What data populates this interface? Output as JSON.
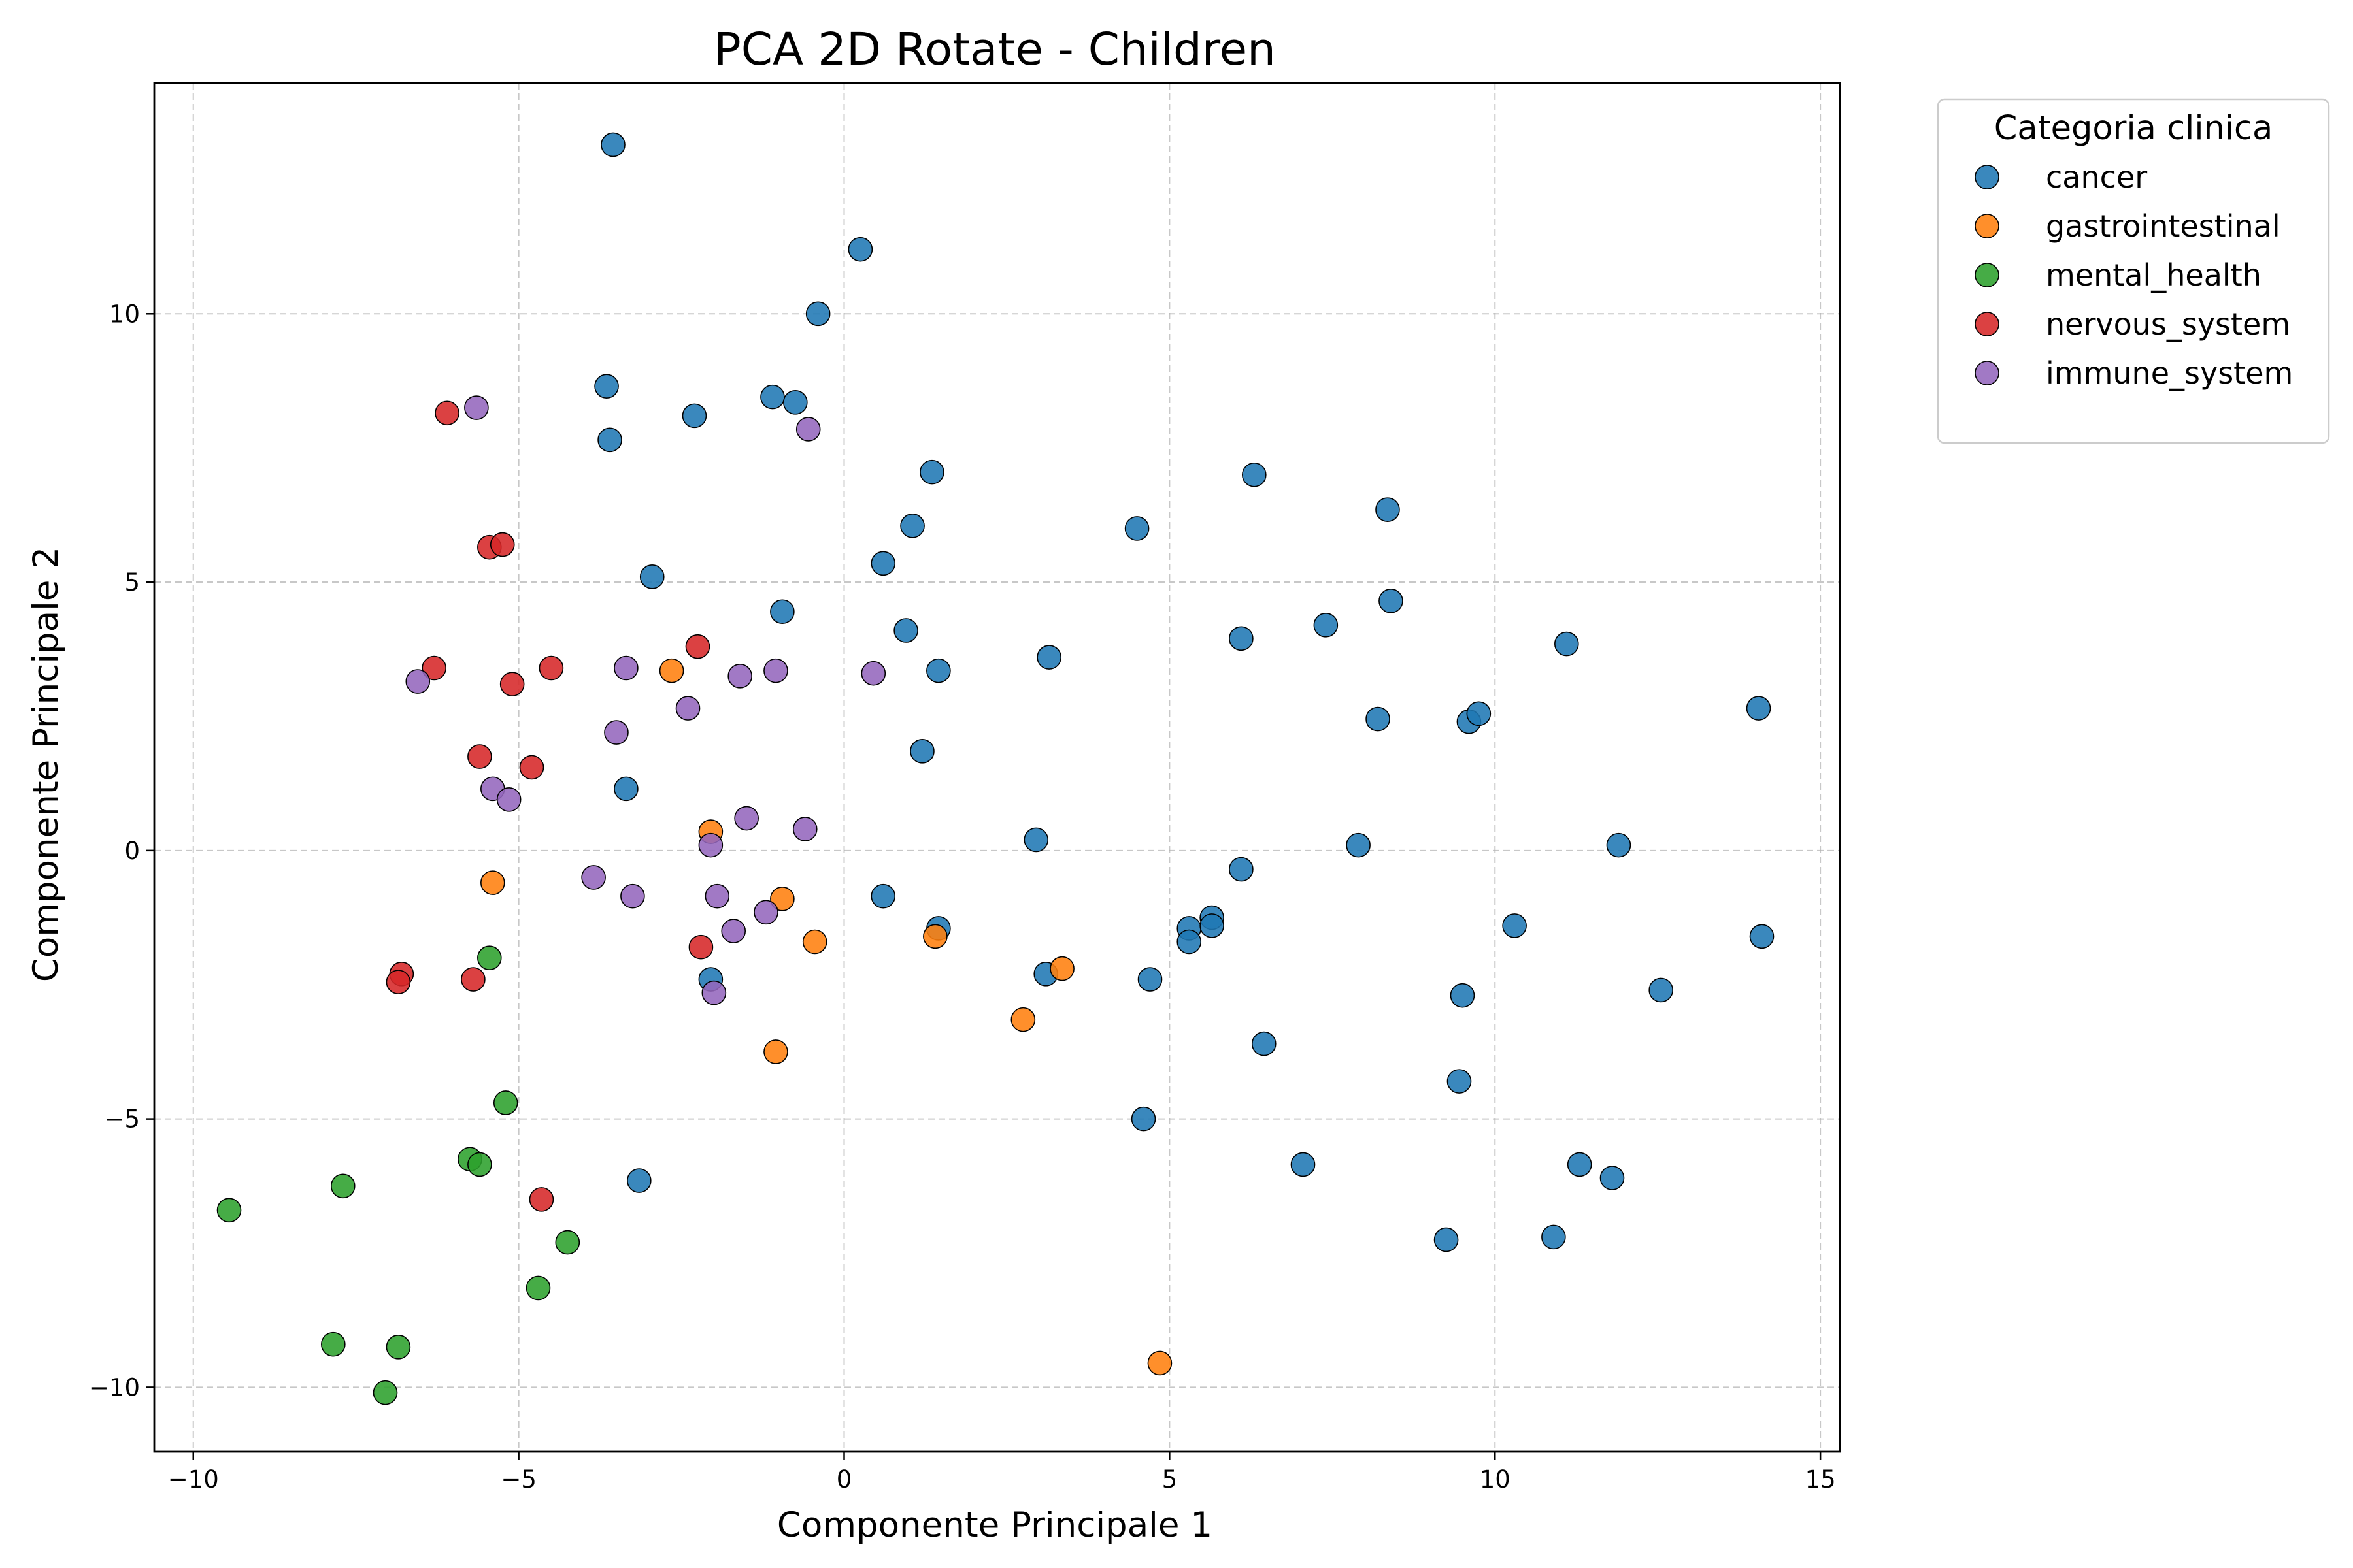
{
  "chart_data": {
    "type": "scatter",
    "title": "PCA 2D Rotate - Children",
    "xlabel": "Componente Principale 1",
    "ylabel": "Componente Principale 2",
    "xlim": [
      -10.6,
      15.3
    ],
    "ylim": [
      -11.2,
      14.3
    ],
    "x_ticks": [
      -10,
      -5,
      0,
      5,
      10,
      15
    ],
    "y_ticks": [
      -10,
      -5,
      0,
      5,
      10
    ],
    "x_tick_labels": [
      "−10",
      "−5",
      "0",
      "5",
      "10",
      "15"
    ],
    "y_tick_labels": [
      "−10",
      "−5",
      "0",
      "5",
      "10"
    ],
    "grid": true,
    "legend": {
      "title": "Categoria clinica",
      "placement": "outside-right-top"
    },
    "series": [
      {
        "name": "cancer",
        "color": "#1f77b4",
        "points": [
          [
            -3.55,
            13.15
          ],
          [
            0.25,
            11.2
          ],
          [
            -0.4,
            10.0
          ],
          [
            -3.65,
            8.65
          ],
          [
            -3.6,
            7.65
          ],
          [
            -2.3,
            8.1
          ],
          [
            -1.1,
            8.45
          ],
          [
            -0.75,
            8.35
          ],
          [
            1.35,
            7.05
          ],
          [
            1.05,
            6.05
          ],
          [
            0.6,
            5.35
          ],
          [
            -2.95,
            5.1
          ],
          [
            -0.95,
            4.45
          ],
          [
            0.95,
            4.1
          ],
          [
            1.45,
            3.35
          ],
          [
            3.15,
            3.6
          ],
          [
            4.5,
            6.0
          ],
          [
            6.3,
            7.0
          ],
          [
            8.35,
            6.35
          ],
          [
            6.1,
            3.95
          ],
          [
            7.4,
            4.2
          ],
          [
            8.4,
            4.65
          ],
          [
            11.1,
            3.85
          ],
          [
            8.2,
            2.45
          ],
          [
            9.6,
            2.4
          ],
          [
            9.75,
            2.55
          ],
          [
            14.05,
            2.65
          ],
          [
            1.2,
            1.85
          ],
          [
            -3.35,
            1.15
          ],
          [
            2.95,
            0.2
          ],
          [
            7.9,
            0.1
          ],
          [
            11.9,
            0.1
          ],
          [
            6.1,
            -0.35
          ],
          [
            0.6,
            -0.85
          ],
          [
            1.45,
            -1.45
          ],
          [
            5.3,
            -1.45
          ],
          [
            5.65,
            -1.25
          ],
          [
            5.65,
            -1.4
          ],
          [
            5.3,
            -1.7
          ],
          [
            10.3,
            -1.4
          ],
          [
            14.1,
            -1.6
          ],
          [
            3.1,
            -2.3
          ],
          [
            4.7,
            -2.4
          ],
          [
            -2.05,
            -2.4
          ],
          [
            9.5,
            -2.7
          ],
          [
            12.55,
            -2.6
          ],
          [
            6.45,
            -3.6
          ],
          [
            9.45,
            -4.3
          ],
          [
            4.6,
            -5.0
          ],
          [
            7.05,
            -5.85
          ],
          [
            11.3,
            -5.85
          ],
          [
            11.8,
            -6.1
          ],
          [
            -3.15,
            -6.15
          ],
          [
            9.25,
            -7.25
          ],
          [
            10.9,
            -7.2
          ]
        ]
      },
      {
        "name": "gastrointestinal",
        "color": "#ff7f0e",
        "points": [
          [
            -2.65,
            3.35
          ],
          [
            -2.05,
            0.35
          ],
          [
            -5.4,
            -0.6
          ],
          [
            -0.95,
            -0.9
          ],
          [
            -0.45,
            -1.7
          ],
          [
            1.4,
            -1.6
          ],
          [
            3.35,
            -2.2
          ],
          [
            2.75,
            -3.15
          ],
          [
            -1.05,
            -3.75
          ],
          [
            4.85,
            -9.55
          ]
        ]
      },
      {
        "name": "mental_health",
        "color": "#2ca02c",
        "points": [
          [
            -5.45,
            -2.0
          ],
          [
            -5.2,
            -4.7
          ],
          [
            -5.75,
            -5.75
          ],
          [
            -5.6,
            -5.85
          ],
          [
            -7.7,
            -6.25
          ],
          [
            -9.45,
            -6.7
          ],
          [
            -4.25,
            -7.3
          ],
          [
            -4.7,
            -8.15
          ],
          [
            -7.85,
            -9.2
          ],
          [
            -6.85,
            -9.25
          ],
          [
            -7.05,
            -10.1
          ]
        ]
      },
      {
        "name": "nervous_system",
        "color": "#d62728",
        "points": [
          [
            -6.1,
            8.15
          ],
          [
            -5.45,
            5.65
          ],
          [
            -5.25,
            5.7
          ],
          [
            -2.25,
            3.8
          ],
          [
            -6.3,
            3.4
          ],
          [
            -4.5,
            3.4
          ],
          [
            -5.1,
            3.1
          ],
          [
            -5.6,
            1.75
          ],
          [
            -4.8,
            1.55
          ],
          [
            -2.2,
            -1.8
          ],
          [
            -6.8,
            -2.3
          ],
          [
            -6.85,
            -2.45
          ],
          [
            -5.7,
            -2.4
          ],
          [
            -4.65,
            -6.5
          ]
        ]
      },
      {
        "name": "immune_system",
        "color": "#9467bd",
        "points": [
          [
            -5.65,
            8.25
          ],
          [
            -0.55,
            7.85
          ],
          [
            -3.35,
            3.4
          ],
          [
            -1.05,
            3.35
          ],
          [
            -1.6,
            3.25
          ],
          [
            0.45,
            3.3
          ],
          [
            -6.55,
            3.15
          ],
          [
            -2.4,
            2.65
          ],
          [
            -3.5,
            2.2
          ],
          [
            -5.4,
            1.15
          ],
          [
            -5.15,
            0.95
          ],
          [
            -1.5,
            0.6
          ],
          [
            -0.6,
            0.4
          ],
          [
            -2.05,
            0.1
          ],
          [
            -3.85,
            -0.5
          ],
          [
            -1.95,
            -0.85
          ],
          [
            -3.25,
            -0.85
          ],
          [
            -1.2,
            -1.15
          ],
          [
            -1.7,
            -1.5
          ],
          [
            -2.0,
            -2.65
          ]
        ]
      }
    ]
  }
}
